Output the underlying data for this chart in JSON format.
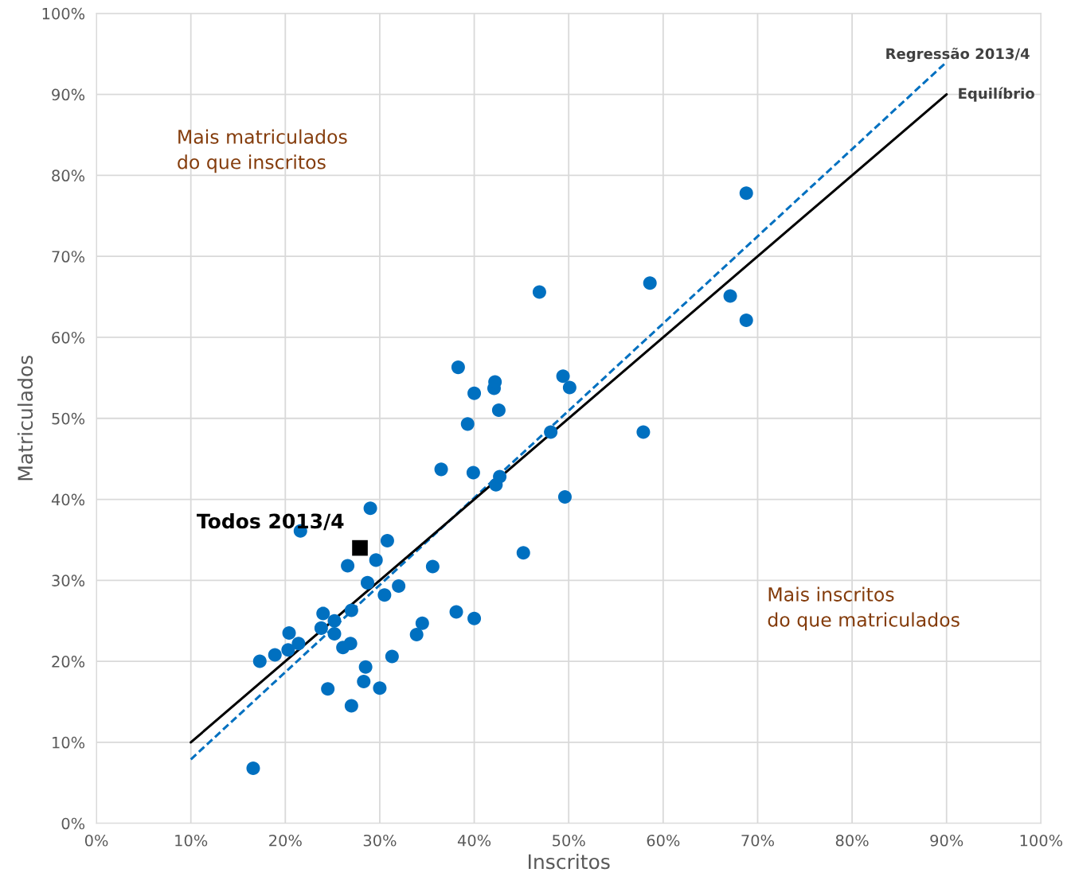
{
  "chart_data": {
    "type": "scatter",
    "xlabel": "Inscritos",
    "ylabel": "Matriculados",
    "xlim": [
      0,
      100
    ],
    "ylim": [
      0,
      100
    ],
    "xticks": [
      {
        "value": 0,
        "label": "0%"
      },
      {
        "value": 10,
        "label": "10%"
      },
      {
        "value": 20,
        "label": "20%"
      },
      {
        "value": 30,
        "label": "30%"
      },
      {
        "value": 40,
        "label": "40%"
      },
      {
        "value": 50,
        "label": "50%"
      },
      {
        "value": 60,
        "label": "60%"
      },
      {
        "value": 70,
        "label": "70%"
      },
      {
        "value": 80,
        "label": "80%"
      },
      {
        "value": 90,
        "label": "90%"
      },
      {
        "value": 100,
        "label": "100%"
      }
    ],
    "yticks": [
      {
        "value": 0,
        "label": "0%"
      },
      {
        "value": 10,
        "label": "10%"
      },
      {
        "value": 20,
        "label": "20%"
      },
      {
        "value": 30,
        "label": "30%"
      },
      {
        "value": 40,
        "label": "40%"
      },
      {
        "value": 50,
        "label": "50%"
      },
      {
        "value": 60,
        "label": "60%"
      },
      {
        "value": 70,
        "label": "70%"
      },
      {
        "value": 80,
        "label": "80%"
      },
      {
        "value": 90,
        "label": "90%"
      },
      {
        "value": 100,
        "label": "100%"
      }
    ],
    "grid": true,
    "legend": false,
    "series": [
      {
        "color": "#0070c0",
        "marker": "circle",
        "x": [
          16.6,
          17.3,
          18.9,
          20.3,
          20.4,
          21.4,
          21.6,
          23.8,
          24.0,
          24.5,
          25.2,
          25.2,
          26.1,
          26.6,
          26.9,
          27.0,
          27.0,
          28.3,
          28.5,
          28.7,
          29.0,
          29.6,
          30.0,
          30.5,
          30.8,
          31.3,
          32.0,
          33.9,
          34.5,
          35.6,
          36.5,
          38.1,
          38.3,
          39.3,
          39.9,
          40.0,
          40.0,
          42.1,
          42.2,
          42.3,
          42.6,
          42.7,
          45.2,
          46.9,
          48.1,
          49.4,
          49.6,
          50.1,
          57.9,
          58.6,
          67.1,
          68.8,
          68.8
        ],
        "values": [
          6.8,
          20.0,
          20.8,
          21.4,
          23.5,
          22.2,
          36.1,
          24.1,
          25.9,
          16.6,
          25.0,
          23.4,
          21.7,
          31.8,
          22.2,
          26.3,
          14.5,
          17.5,
          19.3,
          29.7,
          38.9,
          32.5,
          16.7,
          28.2,
          34.9,
          20.6,
          29.3,
          23.3,
          24.7,
          31.7,
          43.7,
          26.1,
          56.3,
          49.3,
          43.3,
          53.1,
          25.3,
          53.7,
          54.5,
          41.8,
          51.0,
          42.8,
          33.4,
          65.6,
          48.3,
          55.2,
          40.3,
          53.8,
          48.3,
          66.7,
          65.1,
          77.8,
          62.1
        ]
      },
      {
        "type": "scatter",
        "name": "Todos 2013/4",
        "color": "#000000",
        "marker": "square",
        "x": [
          27.9
        ],
        "values": [
          34.0
        ]
      },
      {
        "type": "line",
        "name": "Regressão 2013/4",
        "color": "#0070c0",
        "line_style": "dashed",
        "x": [
          10,
          90
        ],
        "values": [
          7.9,
          94.0
        ]
      },
      {
        "type": "line",
        "name": "Equilíbrio",
        "color": "#000000",
        "line_style": "solid",
        "x": [
          10,
          90
        ],
        "values": [
          10,
          90
        ]
      }
    ],
    "annotations": [
      "Mais matriculados\ndo que inscritos",
      "Mais inscritos\ndo que matriculados"
    ]
  }
}
